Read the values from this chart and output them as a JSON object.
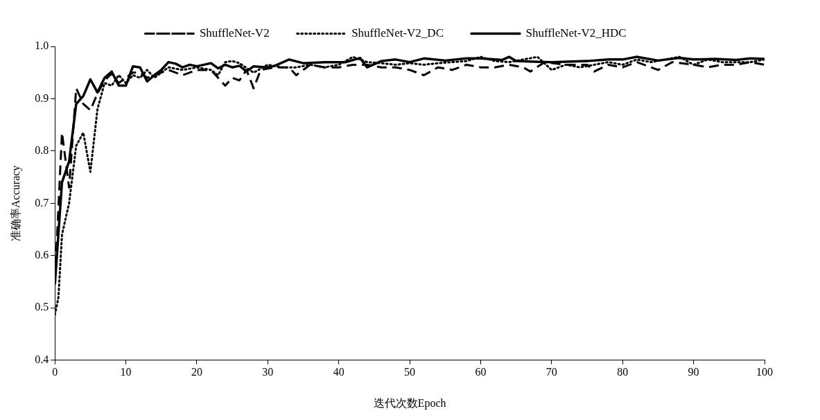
{
  "chart_data": {
    "type": "line",
    "xlabel": "迭代次数Epoch",
    "ylabel": "准确率Accuracy",
    "xlim": [
      0,
      100
    ],
    "xticks": [
      0,
      10,
      20,
      30,
      40,
      50,
      60,
      70,
      80,
      90,
      100
    ],
    "ylim": [
      0.4,
      1.0
    ],
    "yticks": [
      {
        "value": 0.4,
        "label": "0.4"
      },
      {
        "value": 0.5,
        "label": "0.5"
      },
      {
        "value": 0.6,
        "label": "0.6"
      },
      {
        "value": 0.7,
        "label": "0.7"
      },
      {
        "value": 0.8,
        "label": "0.8"
      },
      {
        "value": 0.9,
        "label": "0.9"
      },
      {
        "value": 1.0,
        "label": "1.0"
      }
    ],
    "grid": false,
    "legend": "top",
    "marker": "none",
    "series": [
      {
        "name": "ShuffleNet-V2",
        "color": "#000000",
        "line_style": "dashed",
        "x": [
          0,
          1,
          2,
          3,
          4,
          5,
          6,
          7,
          8,
          9,
          10,
          11,
          12,
          13,
          14,
          16,
          18,
          20,
          22,
          24,
          25,
          26,
          27,
          28,
          29,
          31,
          33,
          34,
          36,
          38,
          40,
          42,
          44,
          46,
          48,
          50,
          52,
          54,
          56,
          58,
          60,
          62,
          64,
          66,
          67,
          69,
          72,
          75,
          76,
          78,
          80,
          82,
          84,
          85,
          87,
          90,
          92,
          94,
          96,
          98,
          100
        ],
        "values": [
          0.55,
          0.835,
          0.73,
          0.92,
          0.89,
          0.878,
          0.91,
          0.935,
          0.948,
          0.93,
          0.94,
          0.95,
          0.95,
          0.94,
          0.945,
          0.955,
          0.945,
          0.955,
          0.955,
          0.925,
          0.94,
          0.935,
          0.955,
          0.92,
          0.955,
          0.96,
          0.96,
          0.945,
          0.965,
          0.96,
          0.96,
          0.965,
          0.965,
          0.96,
          0.96,
          0.955,
          0.945,
          0.96,
          0.955,
          0.965,
          0.96,
          0.96,
          0.965,
          0.96,
          0.952,
          0.97,
          0.965,
          0.965,
          0.952,
          0.965,
          0.96,
          0.97,
          0.96,
          0.955,
          0.97,
          0.965,
          0.96,
          0.965,
          0.965,
          0.97,
          0.965
        ]
      },
      {
        "name": "ShuffleNet-V2_DC",
        "color": "#000000",
        "line_style": "dotted",
        "x": [
          0,
          0.5,
          1,
          2,
          3,
          4,
          5,
          6,
          7,
          8,
          9,
          10,
          11,
          12,
          13,
          14,
          16,
          18,
          20,
          22,
          23,
          24,
          25,
          26,
          28,
          30,
          32,
          34,
          36,
          38,
          40,
          42,
          44,
          46,
          48,
          50,
          52,
          54,
          56,
          58,
          60,
          62,
          64,
          66,
          68,
          70,
          72,
          74,
          76,
          78,
          80,
          82,
          84,
          86,
          88,
          90,
          92,
          94,
          96,
          98,
          100
        ],
        "values": [
          0.487,
          0.52,
          0.64,
          0.7,
          0.81,
          0.835,
          0.76,
          0.88,
          0.93,
          0.925,
          0.945,
          0.93,
          0.945,
          0.94,
          0.955,
          0.94,
          0.96,
          0.955,
          0.96,
          0.955,
          0.945,
          0.97,
          0.972,
          0.968,
          0.95,
          0.965,
          0.96,
          0.96,
          0.965,
          0.96,
          0.965,
          0.98,
          0.97,
          0.968,
          0.965,
          0.968,
          0.965,
          0.968,
          0.97,
          0.972,
          0.98,
          0.972,
          0.97,
          0.975,
          0.98,
          0.955,
          0.965,
          0.96,
          0.965,
          0.97,
          0.965,
          0.975,
          0.97,
          0.975,
          0.98,
          0.965,
          0.975,
          0.97,
          0.97,
          0.97,
          0.975
        ]
      },
      {
        "name": "ShuffleNet-V2_HDC",
        "color": "#000000",
        "line_style": "solid",
        "x": [
          0,
          1,
          2,
          3,
          4,
          5,
          6,
          7,
          8,
          9,
          10,
          11,
          12,
          13,
          14,
          15,
          16,
          17,
          18,
          19,
          20,
          22,
          23,
          24,
          25,
          26,
          27,
          28,
          30,
          31,
          33,
          35,
          38,
          41,
          43,
          44,
          46,
          48,
          50,
          52,
          55,
          58,
          60,
          63,
          64,
          65,
          70,
          75,
          78,
          80,
          82,
          85,
          88,
          90,
          93,
          96,
          98,
          100
        ],
        "values": [
          0.545,
          0.74,
          0.78,
          0.89,
          0.905,
          0.937,
          0.912,
          0.94,
          0.952,
          0.925,
          0.925,
          0.962,
          0.96,
          0.933,
          0.945,
          0.955,
          0.97,
          0.967,
          0.96,
          0.965,
          0.962,
          0.968,
          0.958,
          0.965,
          0.96,
          0.963,
          0.952,
          0.962,
          0.96,
          0.963,
          0.975,
          0.968,
          0.97,
          0.97,
          0.978,
          0.96,
          0.972,
          0.975,
          0.97,
          0.977,
          0.973,
          0.977,
          0.977,
          0.974,
          0.98,
          0.972,
          0.97,
          0.972,
          0.975,
          0.975,
          0.98,
          0.973,
          0.978,
          0.975,
          0.976,
          0.974,
          0.977,
          0.976
        ]
      }
    ]
  }
}
